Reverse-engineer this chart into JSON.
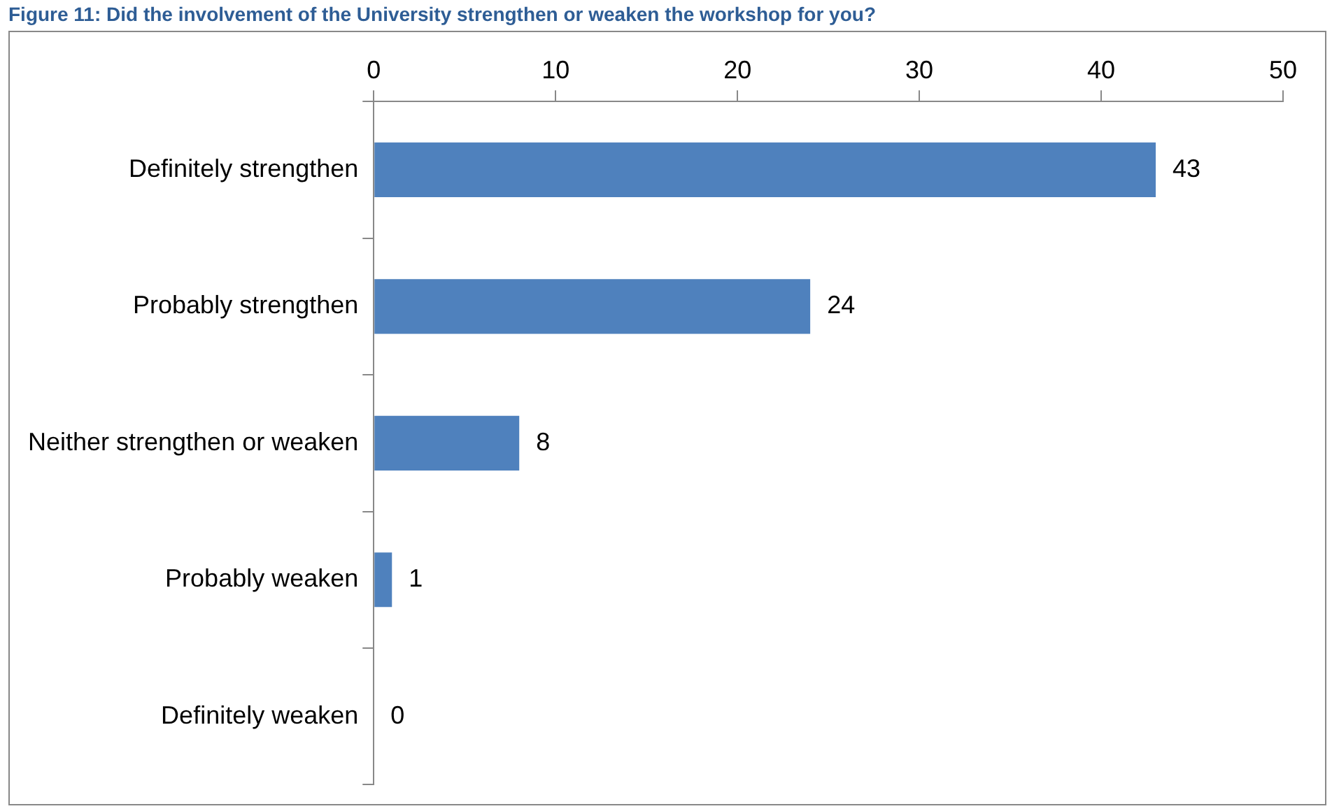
{
  "chart_data": {
    "type": "bar",
    "orientation": "horizontal",
    "title": "Figure 11: Did the involvement of the University strengthen or weaken the workshop for you?",
    "categories": [
      "Definitely strengthen",
      "Probably strengthen",
      "Neither strengthen or weaken",
      "Probably weaken",
      "Definitely weaken"
    ],
    "values": [
      43,
      24,
      8,
      1,
      0
    ],
    "color": "#4f81bd",
    "xlim": [
      0,
      50
    ],
    "xticks": [
      0,
      10,
      20,
      30,
      40,
      50
    ],
    "grid": false,
    "data_labels": true,
    "legend": false
  }
}
